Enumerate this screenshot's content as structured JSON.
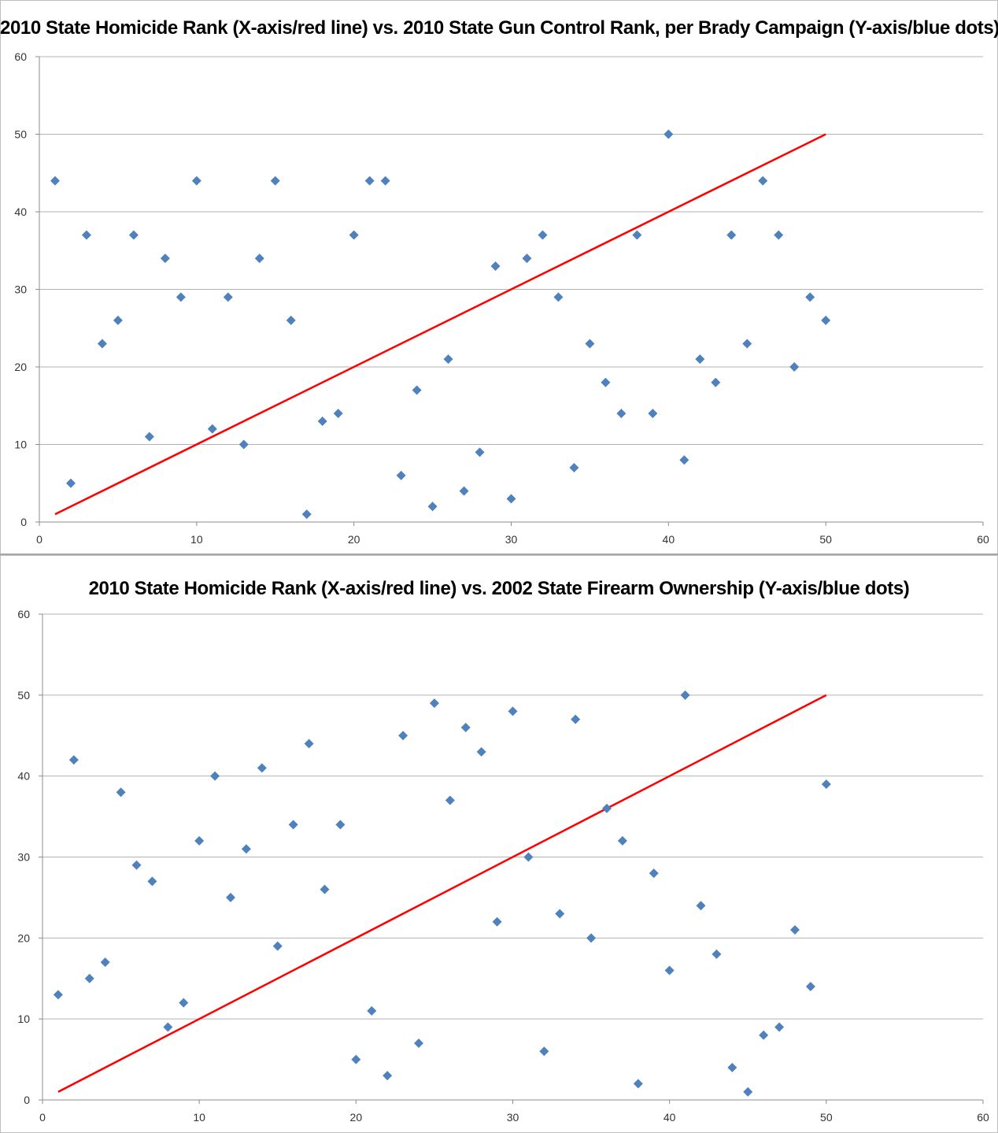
{
  "chart_data": [
    {
      "type": "scatter",
      "title": "2010 State Homicide Rank (X-axis/red line) vs. 2010 State Gun Control Rank, per Brady Campaign (Y-axis/blue dots)",
      "xlim": [
        0,
        60
      ],
      "ylim": [
        0,
        60
      ],
      "xticks": [
        0,
        10,
        20,
        30,
        40,
        50,
        60
      ],
      "yticks": [
        0,
        10,
        20,
        30,
        40,
        50,
        60
      ],
      "grid": "horizontal",
      "colors": {
        "points": "#4f81bd",
        "line": "#ff0000"
      },
      "line": {
        "x": [
          1,
          50
        ],
        "y": [
          1,
          50
        ]
      },
      "points": {
        "x": [
          1,
          2,
          3,
          4,
          5,
          6,
          7,
          8,
          9,
          10,
          11,
          12,
          13,
          14,
          15,
          16,
          17,
          18,
          19,
          20,
          21,
          22,
          23,
          24,
          25,
          26,
          27,
          28,
          29,
          30,
          31,
          32,
          33,
          34,
          35,
          36,
          37,
          38,
          39,
          40,
          41,
          42,
          43,
          44,
          45,
          46,
          47,
          48,
          49,
          50
        ],
        "y": [
          44,
          5,
          37,
          23,
          26,
          37,
          11,
          34,
          29,
          44,
          12,
          29,
          10,
          34,
          44,
          26,
          1,
          13,
          14,
          37,
          44,
          44,
          6,
          17,
          2,
          21,
          4,
          9,
          33,
          3,
          34,
          37,
          29,
          7,
          23,
          18,
          14,
          37,
          14,
          50,
          8,
          21,
          18,
          37,
          23,
          44,
          37,
          20,
          29,
          26
        ]
      }
    },
    {
      "type": "scatter",
      "title": "2010 State Homicide Rank (X-axis/red line) vs. 2002 State Firearm Ownership (Y-axis/blue dots)",
      "xlim": [
        0,
        60
      ],
      "ylim": [
        0,
        60
      ],
      "xticks": [
        0,
        10,
        20,
        30,
        40,
        50,
        60
      ],
      "yticks": [
        0,
        10,
        20,
        30,
        40,
        50,
        60
      ],
      "grid": "horizontal",
      "colors": {
        "points": "#4f81bd",
        "line": "#ff0000"
      },
      "line": {
        "x": [
          1,
          50
        ],
        "y": [
          1,
          50
        ]
      },
      "points": {
        "x": [
          1,
          2,
          3,
          4,
          5,
          6,
          7,
          8,
          9,
          10,
          11,
          12,
          13,
          14,
          15,
          16,
          17,
          18,
          19,
          20,
          21,
          22,
          23,
          24,
          25,
          26,
          27,
          28,
          29,
          30,
          31,
          32,
          33,
          34,
          35,
          36,
          37,
          38,
          39,
          40,
          41,
          42,
          43,
          44,
          45,
          46,
          47,
          48,
          49,
          50
        ],
        "y": [
          13,
          42,
          15,
          17,
          38,
          29,
          27,
          9,
          12,
          32,
          40,
          25,
          31,
          41,
          19,
          34,
          44,
          26,
          34,
          5,
          11,
          3,
          45,
          7,
          49,
          37,
          46,
          43,
          22,
          48,
          30,
          6,
          23,
          47,
          20,
          36,
          32,
          2,
          28,
          16,
          50,
          24,
          18,
          4,
          1,
          8,
          9,
          21,
          14,
          39
        ]
      }
    }
  ]
}
